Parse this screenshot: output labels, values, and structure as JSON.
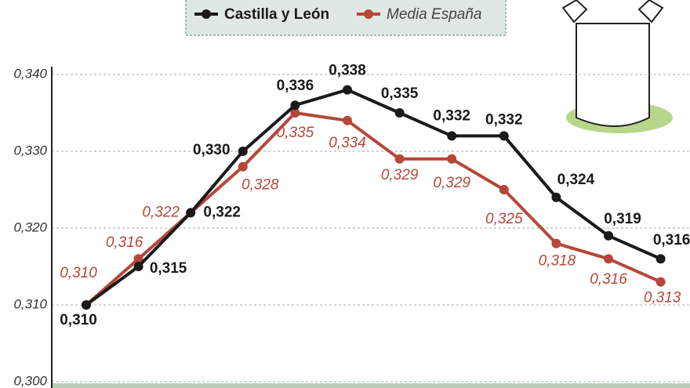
{
  "chart_data": {
    "type": "line",
    "categories": [
      null,
      null,
      null,
      null,
      null,
      null,
      null,
      null,
      null,
      null,
      null,
      null
    ],
    "series": [
      {
        "name": "Castilla y León",
        "color": "#1a1a1a",
        "values": [
          0.31,
          0.315,
          0.322,
          0.33,
          0.336,
          0.338,
          0.335,
          0.332,
          0.332,
          0.324,
          0.319,
          0.316
        ],
        "value_labels": [
          "0,310",
          "0,315",
          "0,322",
          "0,330",
          "0,336",
          "0,338",
          "0,335",
          "0,332",
          "0,332",
          "0,324",
          "0,319",
          "0,316"
        ]
      },
      {
        "name": "Media España",
        "color": "#b5473a",
        "values": [
          0.31,
          0.316,
          0.322,
          0.328,
          0.335,
          0.334,
          0.329,
          0.329,
          0.325,
          0.318,
          0.316,
          0.313
        ],
        "value_labels": [
          "0,310",
          "0,316",
          "0,322",
          "0,328",
          "0,335",
          "0,334",
          "0,329",
          "0,329",
          "0,325",
          "0,318",
          "0,316",
          "0,313"
        ]
      }
    ],
    "ylim": [
      0.3,
      0.34
    ],
    "yticks": [
      {
        "value": 0.3,
        "label": "0,300"
      },
      {
        "value": 0.31,
        "label": "0,310"
      },
      {
        "value": 0.32,
        "label": "0,320"
      },
      {
        "value": 0.33,
        "label": "0,330"
      },
      {
        "value": 0.34,
        "label": "0,340"
      }
    ],
    "grid": true
  }
}
